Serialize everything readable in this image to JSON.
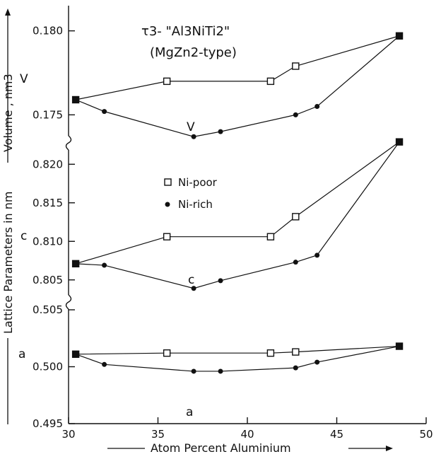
{
  "chart_data": {
    "type": "line",
    "title": "τ3- \"Al3NiTi2\"",
    "subtitle": "(MgZn2-type)",
    "xlabel": "Atom Percent Aluminium",
    "ylabel": "Lattice Parameters in nm",
    "ylabel_top": "Volume , nm3",
    "xlim": [
      30,
      50
    ],
    "xticks": [
      "30",
      "35",
      "40",
      "45",
      "50"
    ],
    "legend": {
      "position": "center",
      "entries": [
        "Ni-poor",
        "Ni-rich"
      ]
    },
    "series_styles": {
      "Ni-poor": {
        "marker": "open-square"
      },
      "Ni-rich": {
        "marker": "filled-circle"
      }
    },
    "panels": [
      {
        "name": "V",
        "ylim": [
          0.1735,
          0.1815
        ],
        "yticks": [
          "0.175",
          "0.180"
        ],
        "label_left": "V",
        "label_inner": "V",
        "series": [
          {
            "name": "Ni-poor",
            "x": [
              30.4,
              35.5,
              41.3,
              42.7,
              48.5
            ],
            "y": [
              0.1759,
              0.177,
              0.177,
              0.1779,
              0.1797
            ]
          },
          {
            "name": "Ni-rich",
            "x": [
              30.4,
              32.0,
              37.0,
              38.5,
              42.7,
              43.9,
              48.5
            ],
            "y": [
              0.1759,
              0.1752,
              0.1737,
              0.174,
              0.175,
              0.1755,
              0.1797
            ]
          }
        ]
      },
      {
        "name": "c",
        "ylim": [
          0.8025,
          0.8225
        ],
        "yticks": [
          "0.805",
          "0.810",
          "0.815",
          "0.820"
        ],
        "label_left": "c",
        "label_inner": "c",
        "series": [
          {
            "name": "Ni-poor",
            "x": [
              30.4,
              35.5,
              41.3,
              42.7,
              48.5
            ],
            "y": [
              0.8071,
              0.8106,
              0.8106,
              0.8132,
              0.8229
            ]
          },
          {
            "name": "Ni-rich",
            "x": [
              30.4,
              32.0,
              37.0,
              38.5,
              42.7,
              43.9,
              48.5
            ],
            "y": [
              0.8071,
              0.8069,
              0.8039,
              0.8049,
              0.8073,
              0.8082,
              0.8229
            ]
          }
        ]
      },
      {
        "name": "a",
        "ylim": [
          0.495,
          0.5055
        ],
        "yticks": [
          "0.495",
          "0.500",
          "0.505"
        ],
        "label_left": "a",
        "label_inner": "a",
        "series": [
          {
            "name": "Ni-poor",
            "x": [
              30.4,
              35.5,
              41.3,
              42.7,
              48.5
            ],
            "y": [
              0.5011,
              0.5012,
              0.5012,
              0.5013,
              0.5018
            ]
          },
          {
            "name": "Ni-rich",
            "x": [
              30.4,
              32.0,
              37.0,
              38.5,
              42.7,
              43.9,
              48.5
            ],
            "y": [
              0.5011,
              0.5002,
              0.4996,
              0.4996,
              0.4999,
              0.5004,
              0.5018
            ]
          }
        ]
      }
    ]
  }
}
